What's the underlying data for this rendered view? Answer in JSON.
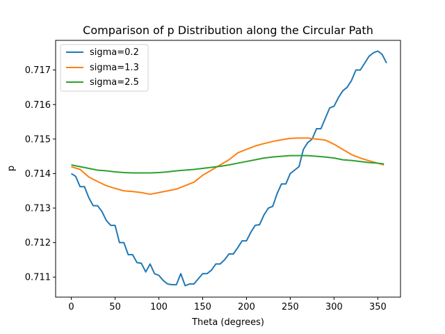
{
  "chart_data": {
    "type": "line",
    "title": "Comparison of p Distribution along the Circular Path",
    "xlabel": "Theta (degrees)",
    "ylabel": "p",
    "xlim": [
      -17.9,
      375.9
    ],
    "ylim": [
      0.71042,
      0.71786
    ],
    "xticks": [
      0,
      50,
      100,
      150,
      200,
      250,
      300,
      350
    ],
    "yticks": [
      0.711,
      0.712,
      0.713,
      0.714,
      0.715,
      0.716,
      0.717
    ],
    "ytick_labels": [
      "0.711",
      "0.712",
      "0.713",
      "0.714",
      "0.715",
      "0.716",
      "0.717"
    ],
    "grid": false,
    "legend_position": "upper-left",
    "series": [
      {
        "name": "sigma=0.2",
        "color": "#1f77b4",
        "points": [
          [
            0,
            0.714
          ],
          [
            5,
            0.71392
          ],
          [
            10,
            0.71362
          ],
          [
            15,
            0.71362
          ],
          [
            20,
            0.7133
          ],
          [
            25,
            0.71307
          ],
          [
            30,
            0.71307
          ],
          [
            35,
            0.7129
          ],
          [
            40,
            0.71264
          ],
          [
            45,
            0.7125
          ],
          [
            50,
            0.7125
          ],
          [
            55,
            0.712
          ],
          [
            60,
            0.712
          ],
          [
            65,
            0.71165
          ],
          [
            70,
            0.71165
          ],
          [
            75,
            0.71142
          ],
          [
            80,
            0.7114
          ],
          [
            85,
            0.71115
          ],
          [
            90,
            0.71138
          ],
          [
            95,
            0.7111
          ],
          [
            100,
            0.71105
          ],
          [
            105,
            0.7109
          ],
          [
            110,
            0.7108
          ],
          [
            115,
            0.71078
          ],
          [
            120,
            0.71078
          ],
          [
            125,
            0.7111
          ],
          [
            130,
            0.71075
          ],
          [
            135,
            0.7108
          ],
          [
            140,
            0.7108
          ],
          [
            145,
            0.71095
          ],
          [
            150,
            0.7111
          ],
          [
            155,
            0.7111
          ],
          [
            160,
            0.7112
          ],
          [
            165,
            0.71138
          ],
          [
            170,
            0.71138
          ],
          [
            175,
            0.7115
          ],
          [
            180,
            0.71167
          ],
          [
            185,
            0.71167
          ],
          [
            190,
            0.71185
          ],
          [
            195,
            0.71205
          ],
          [
            200,
            0.71205
          ],
          [
            205,
            0.7123
          ],
          [
            210,
            0.7125
          ],
          [
            215,
            0.71252
          ],
          [
            220,
            0.7128
          ],
          [
            225,
            0.713
          ],
          [
            230,
            0.71305
          ],
          [
            235,
            0.71342
          ],
          [
            240,
            0.7137
          ],
          [
            245,
            0.7137
          ],
          [
            250,
            0.714
          ],
          [
            255,
            0.7141
          ],
          [
            260,
            0.7142
          ],
          [
            265,
            0.7147
          ],
          [
            270,
            0.7149
          ],
          [
            275,
            0.715
          ],
          [
            280,
            0.7153
          ],
          [
            285,
            0.7153
          ],
          [
            290,
            0.7156
          ],
          [
            295,
            0.7159
          ],
          [
            300,
            0.71595
          ],
          [
            305,
            0.7162
          ],
          [
            310,
            0.7164
          ],
          [
            315,
            0.7165
          ],
          [
            320,
            0.7167
          ],
          [
            325,
            0.717
          ],
          [
            330,
            0.717
          ],
          [
            335,
            0.7172
          ],
          [
            340,
            0.7174
          ],
          [
            345,
            0.7175
          ],
          [
            350,
            0.71755
          ],
          [
            355,
            0.71745
          ],
          [
            360,
            0.7172
          ]
        ]
      },
      {
        "name": "sigma=1.3",
        "color": "#ff7f0e",
        "points": [
          [
            0,
            0.7142
          ],
          [
            10,
            0.71412
          ],
          [
            20,
            0.7139
          ],
          [
            30,
            0.71377
          ],
          [
            40,
            0.71365
          ],
          [
            50,
            0.71357
          ],
          [
            60,
            0.7135
          ],
          [
            70,
            0.71348
          ],
          [
            80,
            0.71345
          ],
          [
            90,
            0.7134
          ],
          [
            100,
            0.71345
          ],
          [
            110,
            0.7135
          ],
          [
            120,
            0.71355
          ],
          [
            130,
            0.71365
          ],
          [
            140,
            0.71375
          ],
          [
            150,
            0.71395
          ],
          [
            160,
            0.7141
          ],
          [
            170,
            0.71425
          ],
          [
            180,
            0.7144
          ],
          [
            190,
            0.7146
          ],
          [
            200,
            0.7147
          ],
          [
            210,
            0.7148
          ],
          [
            220,
            0.71487
          ],
          [
            230,
            0.71493
          ],
          [
            240,
            0.71498
          ],
          [
            250,
            0.71502
          ],
          [
            260,
            0.71503
          ],
          [
            270,
            0.71503
          ],
          [
            280,
            0.715
          ],
          [
            290,
            0.71497
          ],
          [
            300,
            0.71485
          ],
          [
            310,
            0.7147
          ],
          [
            320,
            0.71455
          ],
          [
            330,
            0.71445
          ],
          [
            340,
            0.71437
          ],
          [
            350,
            0.7143
          ],
          [
            357,
            0.71425
          ]
        ]
      },
      {
        "name": "sigma=2.5",
        "color": "#2ca02c",
        "points": [
          [
            0,
            0.71425
          ],
          [
            10,
            0.7142
          ],
          [
            20,
            0.71415
          ],
          [
            30,
            0.7141
          ],
          [
            40,
            0.71408
          ],
          [
            50,
            0.71405
          ],
          [
            60,
            0.71403
          ],
          [
            70,
            0.71402
          ],
          [
            80,
            0.71402
          ],
          [
            90,
            0.71402
          ],
          [
            100,
            0.71403
          ],
          [
            110,
            0.71405
          ],
          [
            120,
            0.71408
          ],
          [
            130,
            0.7141
          ],
          [
            140,
            0.71412
          ],
          [
            150,
            0.71415
          ],
          [
            160,
            0.71418
          ],
          [
            170,
            0.71421
          ],
          [
            180,
            0.71425
          ],
          [
            190,
            0.7143
          ],
          [
            200,
            0.71435
          ],
          [
            210,
            0.7144
          ],
          [
            220,
            0.71445
          ],
          [
            230,
            0.71448
          ],
          [
            240,
            0.7145
          ],
          [
            250,
            0.71452
          ],
          [
            260,
            0.71452
          ],
          [
            270,
            0.71452
          ],
          [
            280,
            0.7145
          ],
          [
            290,
            0.71448
          ],
          [
            300,
            0.71445
          ],
          [
            310,
            0.7144
          ],
          [
            320,
            0.71438
          ],
          [
            330,
            0.71435
          ],
          [
            340,
            0.71432
          ],
          [
            350,
            0.7143
          ],
          [
            357,
            0.71428
          ]
        ]
      }
    ]
  }
}
